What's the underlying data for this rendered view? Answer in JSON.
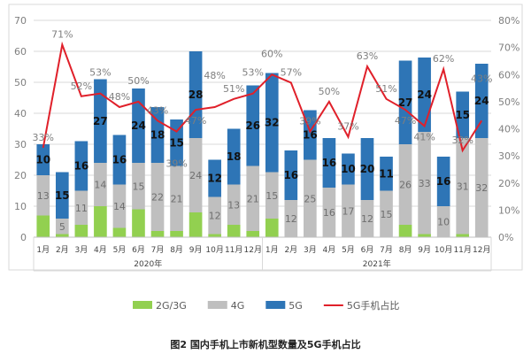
{
  "caption": "图2  国内手机上市新机型数量及5G手机占比",
  "chart_data": {
    "type": "bar",
    "stacked": true,
    "title": "",
    "categories": [
      "1月",
      "2月",
      "3月",
      "4月",
      "5月",
      "6月",
      "7月",
      "8月",
      "9月",
      "10月",
      "11月",
      "12月",
      "1月",
      "2月",
      "3月",
      "4月",
      "5月",
      "6月",
      "7月",
      "8月",
      "9月",
      "10月",
      "11月",
      "12月"
    ],
    "groups": [
      {
        "label": "2020年",
        "from": 0,
        "to": 11
      },
      {
        "label": "2021年",
        "from": 12,
        "to": 23
      }
    ],
    "ylim": [
      0,
      70
    ],
    "yticks": [
      0,
      10,
      20,
      30,
      40,
      50,
      60,
      70
    ],
    "y2lim": [
      0,
      80
    ],
    "y2ticks": [
      "0%",
      "10%",
      "20%",
      "30%",
      "40%",
      "50%",
      "60%",
      "70%",
      "80%"
    ],
    "grid": true,
    "legend_position": "bottom",
    "series": [
      {
        "name": "2G/3G",
        "color": "#92d050",
        "values": [
          7,
          1,
          4,
          10,
          3,
          9,
          2,
          2,
          8,
          1,
          4,
          2,
          6,
          0,
          0,
          0,
          0,
          0,
          0,
          4,
          1,
          0,
          1,
          0
        ]
      },
      {
        "name": "4G",
        "color": "#bfbfbf",
        "values": [
          13,
          5,
          11,
          14,
          14,
          15,
          22,
          21,
          24,
          12,
          13,
          21,
          15,
          12,
          25,
          16,
          17,
          12,
          15,
          26,
          33,
          10,
          31,
          32
        ]
      },
      {
        "name": "5G",
        "color": "#2e75b6",
        "values": [
          10,
          15,
          16,
          27,
          16,
          24,
          18,
          15,
          28,
          12,
          18,
          26,
          32,
          16,
          16,
          16,
          10,
          20,
          11,
          27,
          24,
          16,
          15,
          24
        ]
      },
      {
        "name": "5G手机占比",
        "type": "line",
        "axis": "right",
        "color": "#e0202a",
        "values": [
          33,
          71,
          52,
          53,
          48,
          50,
          43,
          39,
          47,
          48,
          51,
          53,
          60,
          57,
          39,
          50,
          37,
          63,
          51,
          47,
          41,
          62,
          32,
          43
        ],
        "labels": [
          "33%",
          "71%",
          "52%",
          "53%",
          "48%",
          "50%",
          "43%",
          "39%",
          "47%",
          "48%",
          "51%",
          "53%",
          "60%",
          "57%",
          "39%",
          "50%",
          "37%",
          "63%",
          "51%",
          "47%",
          "41%",
          "62%",
          "32%",
          "43%"
        ]
      }
    ]
  }
}
